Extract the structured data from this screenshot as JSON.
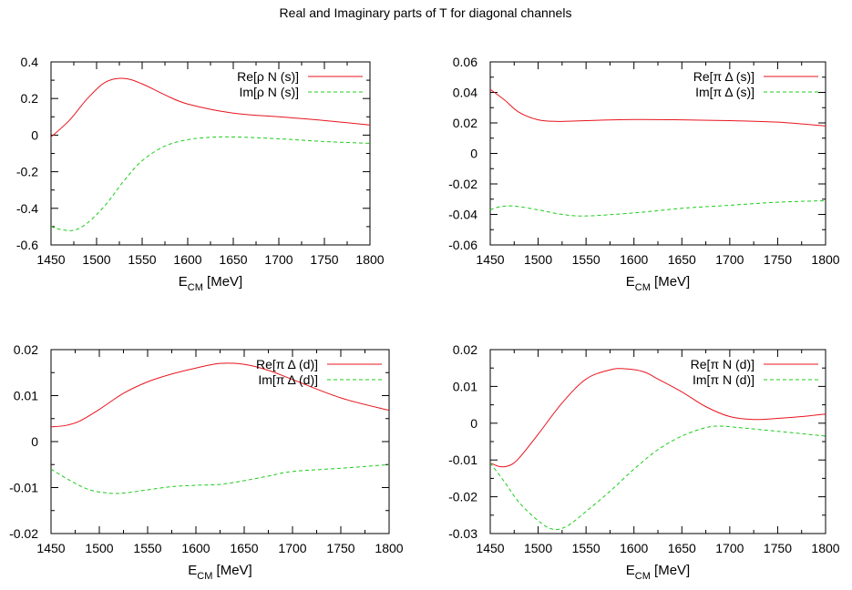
{
  "title": "Real and Imaginary parts of T for diagonal channels",
  "colors": {
    "re": "#e8141e",
    "im": "#1ccc1c"
  },
  "chart_data": [
    {
      "type": "line",
      "xlabel": "E_CM [MeV]",
      "xlabel_main": "E",
      "xlabel_sub": "CM",
      "xlabel_unit": " [MeV]",
      "xlim": [
        1450,
        1800
      ],
      "ylim": [
        -0.6,
        0.4
      ],
      "xticks": [
        1450,
        1500,
        1550,
        1600,
        1650,
        1700,
        1750,
        1800
      ],
      "yticks": [
        -0.6,
        -0.4,
        -0.2,
        0,
        0.2,
        0.4
      ],
      "ytick_labels": [
        "-0.6",
        "-0.4",
        "-0.2",
        "0",
        "0.2",
        "0.4"
      ],
      "legend_position": "top-right",
      "series": [
        {
          "name": "Re[ρ N (s)]",
          "style": "solid",
          "color": "#e8141e",
          "x": [
            1450,
            1470,
            1490,
            1510,
            1530,
            1550,
            1575,
            1600,
            1650,
            1700,
            1750,
            1800
          ],
          "y": [
            -0.01,
            0.08,
            0.2,
            0.29,
            0.31,
            0.28,
            0.22,
            0.17,
            0.12,
            0.1,
            0.08,
            0.055
          ]
        },
        {
          "name": "Im[ρ N (s)]",
          "style": "dashed",
          "color": "#1ccc1c",
          "x": [
            1450,
            1460,
            1475,
            1490,
            1510,
            1530,
            1550,
            1575,
            1600,
            1625,
            1650,
            1700,
            1750,
            1800
          ],
          "y": [
            -0.5,
            -0.515,
            -0.52,
            -0.48,
            -0.38,
            -0.25,
            -0.14,
            -0.06,
            -0.025,
            -0.012,
            -0.01,
            -0.02,
            -0.035,
            -0.045
          ]
        }
      ]
    },
    {
      "type": "line",
      "xlabel": "E_CM [MeV]",
      "xlabel_main": "E",
      "xlabel_sub": "CM",
      "xlabel_unit": " [MeV]",
      "xlim": [
        1450,
        1800
      ],
      "ylim": [
        -0.06,
        0.06
      ],
      "xticks": [
        1450,
        1500,
        1550,
        1600,
        1650,
        1700,
        1750,
        1800
      ],
      "yticks": [
        -0.06,
        -0.04,
        -0.02,
        0,
        0.02,
        0.04,
        0.06
      ],
      "ytick_labels": [
        "-0.06",
        "-0.04",
        "-0.02",
        "0",
        "0.02",
        "0.04",
        "0.06"
      ],
      "legend_position": "top-right",
      "series": [
        {
          "name": "Re[π Δ (s)]",
          "style": "solid",
          "color": "#e8141e",
          "x": [
            1450,
            1465,
            1480,
            1500,
            1520,
            1550,
            1600,
            1650,
            1700,
            1750,
            1800
          ],
          "y": [
            0.042,
            0.035,
            0.027,
            0.022,
            0.021,
            0.0215,
            0.0222,
            0.022,
            0.0215,
            0.0205,
            0.018
          ]
        },
        {
          "name": "Im[π Δ (s)]",
          "style": "dashed",
          "color": "#1ccc1c",
          "x": [
            1450,
            1460,
            1475,
            1500,
            1525,
            1550,
            1600,
            1650,
            1700,
            1750,
            1800
          ],
          "y": [
            -0.037,
            -0.035,
            -0.0345,
            -0.037,
            -0.04,
            -0.041,
            -0.039,
            -0.036,
            -0.034,
            -0.032,
            -0.031
          ]
        }
      ]
    },
    {
      "type": "line",
      "xlabel": "E_CM [MeV]",
      "xlabel_main": "E",
      "xlabel_sub": "CM",
      "xlabel_unit": " [MeV]",
      "xlim": [
        1450,
        1800
      ],
      "ylim": [
        -0.02,
        0.02
      ],
      "xticks": [
        1450,
        1500,
        1550,
        1600,
        1650,
        1700,
        1750,
        1800
      ],
      "yticks": [
        -0.02,
        -0.01,
        0,
        0.01,
        0.02
      ],
      "ytick_labels": [
        "-0.02",
        "-0.01",
        "0",
        "0.01",
        "0.02"
      ],
      "legend_position": "top-right",
      "series": [
        {
          "name": "Re[π Δ (d)]",
          "style": "solid",
          "color": "#e8141e",
          "x": [
            1450,
            1465,
            1480,
            1500,
            1525,
            1550,
            1575,
            1600,
            1625,
            1650,
            1675,
            1700,
            1750,
            1800
          ],
          "y": [
            0.0032,
            0.0035,
            0.0045,
            0.007,
            0.0105,
            0.013,
            0.0147,
            0.016,
            0.017,
            0.0168,
            0.0155,
            0.0135,
            0.0095,
            0.0068
          ]
        },
        {
          "name": "Im[π Δ (d)]",
          "style": "dashed",
          "color": "#1ccc1c",
          "x": [
            1450,
            1470,
            1490,
            1510,
            1525,
            1550,
            1575,
            1600,
            1625,
            1650,
            1675,
            1700,
            1750,
            1800
          ],
          "y": [
            -0.006,
            -0.0085,
            -0.0105,
            -0.0112,
            -0.0112,
            -0.0105,
            -0.0098,
            -0.0095,
            -0.0093,
            -0.0085,
            -0.0075,
            -0.0065,
            -0.0058,
            -0.005
          ]
        }
      ]
    },
    {
      "type": "line",
      "xlabel": "E_CM [MeV]",
      "xlabel_main": "E",
      "xlabel_sub": "CM",
      "xlabel_unit": " [MeV]",
      "xlim": [
        1450,
        1800
      ],
      "ylim": [
        -0.03,
        0.02
      ],
      "xticks": [
        1450,
        1500,
        1550,
        1600,
        1650,
        1700,
        1750,
        1800
      ],
      "yticks": [
        -0.03,
        -0.02,
        -0.01,
        0,
        0.01,
        0.02
      ],
      "ytick_labels": [
        "-0.03",
        "-0.02",
        "-0.01",
        "0",
        "0.01",
        "0.02"
      ],
      "legend_position": "top-right",
      "series": [
        {
          "name": "Re[π N (d)]",
          "style": "solid",
          "color": "#e8141e",
          "x": [
            1450,
            1460,
            1470,
            1480,
            1500,
            1525,
            1550,
            1575,
            1590,
            1610,
            1625,
            1650,
            1675,
            1700,
            1725,
            1750,
            1775,
            1800
          ],
          "y": [
            -0.0108,
            -0.0118,
            -0.0115,
            -0.0095,
            -0.003,
            0.0055,
            0.012,
            0.0145,
            0.0148,
            0.014,
            0.012,
            0.0085,
            0.0045,
            0.0018,
            0.001,
            0.0013,
            0.0018,
            0.0025
          ]
        },
        {
          "name": "Im[π N (d)]",
          "style": "dashed",
          "color": "#1ccc1c",
          "x": [
            1450,
            1465,
            1480,
            1500,
            1515,
            1530,
            1550,
            1575,
            1600,
            1625,
            1650,
            1675,
            1690,
            1710,
            1750,
            1800
          ],
          "y": [
            -0.0108,
            -0.016,
            -0.0215,
            -0.0265,
            -0.0288,
            -0.028,
            -0.024,
            -0.0185,
            -0.0125,
            -0.0072,
            -0.0035,
            -0.0012,
            -0.0008,
            -0.0012,
            -0.0022,
            -0.0035
          ]
        }
      ]
    }
  ]
}
